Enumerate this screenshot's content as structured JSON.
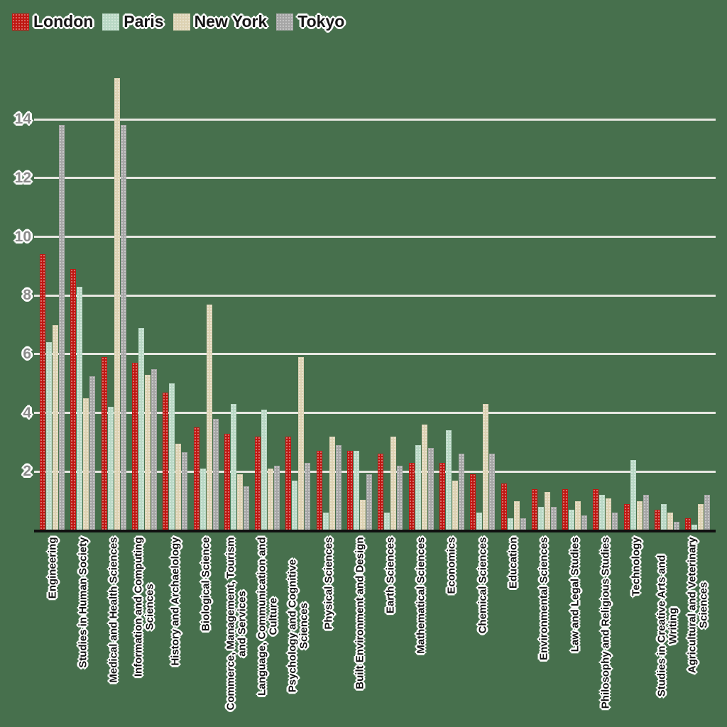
{
  "chart_data": {
    "type": "bar",
    "title": "",
    "xlabel": "",
    "ylabel": "",
    "categories": [
      "Engineering",
      "Studies in Human Society",
      "Medical and Health Sciences",
      "Information and Computing\nSciences",
      "History and Archaelology",
      "Biological Science",
      "Commerce, Management, Tourism\nand Services",
      "Language, Communication and\nCulture",
      "Psychology and Cognitive Sciences",
      "Physical Sciences",
      "Built Environment and Design",
      "Earth Sciences",
      "Mathematical Sciences",
      "Economics",
      "Chemical Sciences",
      "Education",
      "Environmental Sciences",
      "Law and Legal Studies",
      "Philosophy and Religious Studies",
      "Technology",
      "Studies in Creative Arts and Writing",
      "Agricultural and Veterinary\nSciences"
    ],
    "series": [
      {
        "name": "London",
        "color": "#bf1712",
        "values": [
          9.4,
          8.9,
          5.9,
          5.7,
          4.7,
          3.5,
          3.3,
          3.2,
          3.2,
          2.7,
          2.7,
          2.6,
          2.3,
          2.3,
          1.9,
          1.6,
          1.4,
          1.4,
          1.4,
          0.9,
          0.7,
          0.4
        ]
      },
      {
        "name": "Paris",
        "color": "#b9d8c5",
        "values": [
          6.4,
          8.3,
          4.2,
          6.9,
          5.0,
          2.1,
          4.3,
          4.1,
          1.7,
          0.6,
          2.7,
          0.6,
          2.9,
          3.4,
          0.6,
          0.4,
          0.8,
          0.7,
          1.2,
          2.4,
          0.9,
          0.2
        ]
      },
      {
        "name": "New York",
        "color": "#ddd2b3",
        "values": [
          7.0,
          4.5,
          15.4,
          5.3,
          2.95,
          7.7,
          1.9,
          2.1,
          5.9,
          3.2,
          1.05,
          3.2,
          3.6,
          1.7,
          4.3,
          1.0,
          1.3,
          1.0,
          1.1,
          1.0,
          0.6,
          0.9
        ]
      },
      {
        "name": "Tokyo",
        "color": "#a6a6a6",
        "values": [
          13.8,
          5.25,
          13.8,
          5.5,
          2.65,
          3.8,
          1.5,
          2.2,
          2.3,
          2.9,
          1.9,
          2.2,
          2.8,
          2.6,
          2.6,
          0.4,
          0.8,
          0.5,
          0.6,
          1.2,
          0.3,
          1.2
        ]
      }
    ],
    "yticks": [
      2,
      4,
      6,
      8,
      10,
      12,
      14
    ],
    "ylim": [
      0,
      15.5
    ],
    "grid": true,
    "legend_position": "top-left",
    "colors": {
      "background": "#47704d",
      "gridline": "#e8e8e2",
      "axis_line": "#101010",
      "tick_label": "#8a8a8a",
      "text": "#121212"
    }
  }
}
